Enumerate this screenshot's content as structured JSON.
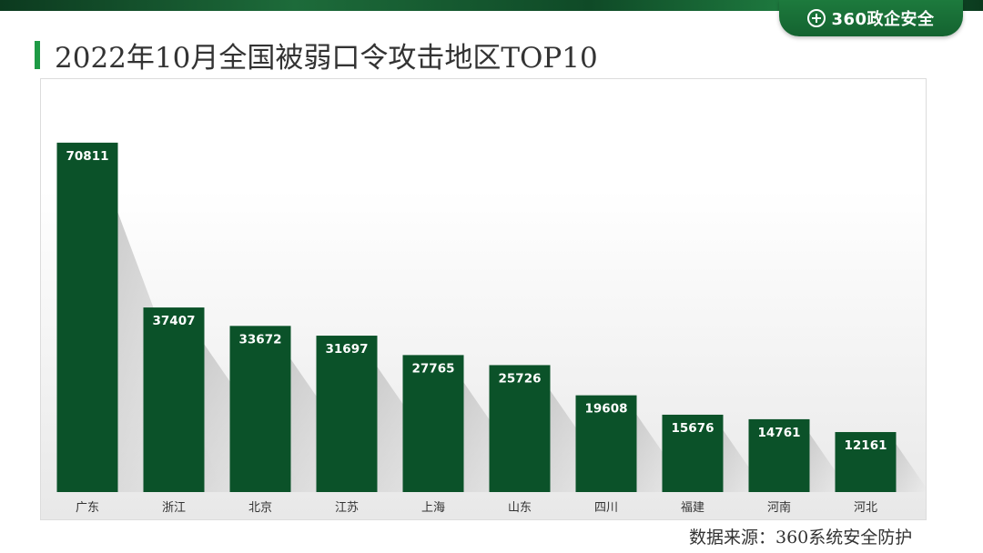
{
  "header": {
    "brand": "360政企安全",
    "title": "2022年10月全国被弱口令攻击地区TOP10"
  },
  "footer": {
    "source": "数据来源：360系统安全防护"
  },
  "colors": {
    "bar": "#0b5229",
    "accent": "#1e9a45",
    "brand_tab": "#176b35"
  },
  "chart_data": {
    "type": "bar",
    "title": "",
    "xlabel": "",
    "ylabel": "",
    "categories": [
      "广东",
      "浙江",
      "北京",
      "江苏",
      "上海",
      "山东",
      "四川",
      "福建",
      "河南",
      "河北"
    ],
    "values": [
      70811,
      37407,
      33672,
      31697,
      27765,
      25726,
      19608,
      15676,
      14761,
      12161
    ],
    "ylim": [
      0,
      80000
    ],
    "grid": false,
    "data_labels": true
  }
}
